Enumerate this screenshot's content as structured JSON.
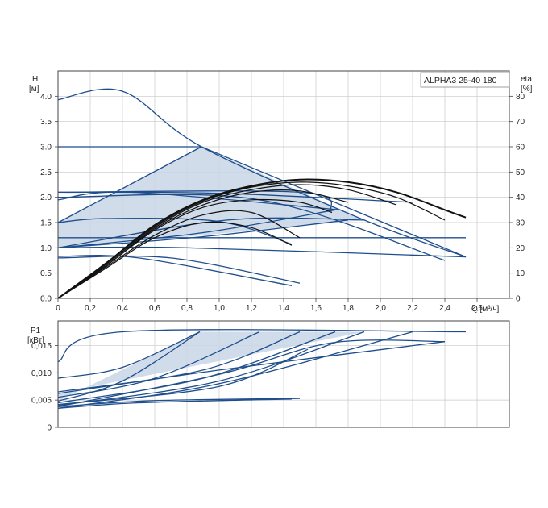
{
  "chart_data": [
    {
      "type": "line",
      "panel": "head-and-efficiency",
      "model_label": "ALPHA3 25-40 180",
      "y_label_name": "H",
      "y_label_unit": "[м]",
      "y2_label_name": "eta",
      "y2_label_unit": "[%]",
      "x_label": "Q [м³/ч]",
      "xlim": [
        0,
        2.8
      ],
      "ylim": [
        0,
        4.5
      ],
      "y2lim": [
        0,
        90
      ],
      "x_ticks": [
        "0",
        "0,2",
        "0,4",
        "0,6",
        "0,8",
        "1,0",
        "1,2",
        "1,4",
        "1,6",
        "1,8",
        "2,0",
        "2,2",
        "2,4",
        "2,6"
      ],
      "y_ticks": [
        "0.0",
        "0.5",
        "1.0",
        "1.5",
        "2.0",
        "2.5",
        "3.0",
        "3.5",
        "4.0"
      ],
      "y2_ticks": [
        "0",
        "10",
        "20",
        "30",
        "40",
        "50",
        "60",
        "70",
        "80"
      ],
      "grid": true,
      "colors": {
        "pump_curve": "#1f4e8c",
        "efficiency_curve": "#111111",
        "shade": "#c9d6e6",
        "grid": "#c8c8c8"
      },
      "shaded_region": [
        [
          0,
          1.0
        ],
        [
          0,
          1.5
        ],
        [
          0.89,
          3.0
        ],
        [
          1.9,
          1.55
        ],
        [
          0.8,
          1.22
        ]
      ],
      "pump_curves": [
        {
          "x": [
            0,
            0.4,
            0.89,
            1.9,
            2.53
          ],
          "y": [
            3.93,
            4.1,
            3.0,
            1.55,
            0.82
          ]
        },
        {
          "x": [
            0,
            0.89
          ],
          "y": [
            3.0,
            3.0
          ]
        },
        {
          "x": [
            0.89,
            2.53
          ],
          "y": [
            3.0,
            0.82
          ]
        },
        {
          "x": [
            0,
            0.89
          ],
          "y": [
            1.5,
            3.0
          ]
        },
        {
          "x": [
            0,
            1.5,
            1.7
          ],
          "y": [
            2.1,
            2.1,
            1.75
          ]
        },
        {
          "x": [
            0,
            1.0,
            2.2
          ],
          "y": [
            2.1,
            2.08,
            1.9
          ]
        },
        {
          "x": [
            0,
            0.45,
            1.75
          ],
          "y": [
            1.95,
            2.1,
            1.75
          ]
        },
        {
          "x": [
            0,
            1.25,
            2.4
          ],
          "y": [
            2.0,
            1.95,
            0.75
          ]
        },
        {
          "x": [
            0,
            1.05,
            1.9
          ],
          "y": [
            1.0,
            1.55,
            1.55
          ]
        },
        {
          "x": [
            0,
            0.9,
            1.72
          ],
          "y": [
            1.0,
            1.3,
            1.75
          ]
        },
        {
          "x": [
            0,
            0.3,
            1.0,
            1.45
          ],
          "y": [
            1.5,
            1.58,
            1.52,
            1.07
          ]
        },
        {
          "x": [
            0,
            1.0,
            2.53
          ],
          "y": [
            1.2,
            1.2,
            1.2
          ]
        },
        {
          "x": [
            0,
            0.8,
            2.53
          ],
          "y": [
            1.0,
            1.0,
            0.82
          ]
        },
        {
          "x": [
            0,
            0.9,
            1.8
          ],
          "y": [
            1.0,
            1.22,
            1.55
          ]
        },
        {
          "x": [
            0,
            0.7,
            1.5
          ],
          "y": [
            0.8,
            0.8,
            0.3
          ]
        },
        {
          "x": [
            0,
            0.5,
            1.45
          ],
          "y": [
            0.83,
            0.8,
            0.25
          ]
        }
      ],
      "efficiency_curves": [
        {
          "x": [
            0,
            0.3,
            0.6,
            0.9,
            1.2,
            1.5,
            1.8,
            2.1,
            2.4,
            2.53
          ],
          "y": [
            0,
            14,
            29,
            39,
            44.5,
            47,
            46,
            42,
            35,
            32
          ]
        },
        {
          "x": [
            0,
            0.3,
            0.6,
            0.9,
            1.2,
            1.5,
            1.8,
            2.1,
            2.4
          ],
          "y": [
            0,
            14,
            28.5,
            38.5,
            44,
            46,
            44.5,
            40,
            31
          ]
        },
        {
          "x": [
            0,
            0.3,
            0.6,
            0.9,
            1.2,
            1.5,
            1.8,
            2.1
          ],
          "y": [
            0,
            13.5,
            28,
            38,
            43,
            45,
            43,
            37
          ]
        },
        {
          "x": [
            0,
            0.3,
            0.6,
            0.9,
            1.2,
            1.5,
            1.8
          ],
          "y": [
            0,
            13,
            27.5,
            37,
            42,
            42.5,
            38
          ]
        },
        {
          "x": [
            0,
            0.3,
            0.6,
            0.9,
            1.2,
            1.5,
            1.7
          ],
          "y": [
            0,
            13,
            27,
            36,
            39,
            38,
            34
          ]
        },
        {
          "x": [
            0,
            0.3,
            0.6,
            0.9,
            1.2,
            1.5
          ],
          "y": [
            0,
            12.5,
            25,
            33,
            34,
            24
          ]
        },
        {
          "x": [
            0,
            0.3,
            0.6,
            0.9,
            1.2,
            1.45
          ],
          "y": [
            0,
            12,
            24,
            30,
            28,
            21
          ]
        }
      ]
    },
    {
      "type": "line",
      "panel": "power",
      "y_label_name": "P1",
      "y_label_unit": "[кВт]",
      "xlim": [
        0,
        2.8
      ],
      "ylim": [
        0,
        0.0195
      ],
      "y_ticks": [
        "0",
        "0,005",
        "0,010",
        "0,015"
      ],
      "grid": true,
      "shaded_region": [
        [
          0,
          0.0062
        ],
        [
          0,
          0.0048
        ],
        [
          0.88,
          0.0175
        ],
        [
          1.9,
          0.0175
        ]
      ],
      "power_curves": [
        {
          "x": [
            0,
            0.4,
            2.53
          ],
          "y": [
            0.012,
            0.0175,
            0.0175
          ]
        },
        {
          "x": [
            0,
            0.4,
            0.88
          ],
          "y": [
            0.009,
            0.011,
            0.0175
          ]
        },
        {
          "x": [
            0,
            0.4,
            0.88
          ],
          "y": [
            0.0048,
            0.0085,
            0.0175
          ]
        },
        {
          "x": [
            0,
            0.6,
            1.25
          ],
          "y": [
            0.0055,
            0.009,
            0.0175
          ]
        },
        {
          "x": [
            0,
            0.9,
            1.5
          ],
          "y": [
            0.0065,
            0.0105,
            0.0175
          ]
        },
        {
          "x": [
            0,
            0.9,
            1.72
          ],
          "y": [
            0.0045,
            0.009,
            0.0175
          ]
        },
        {
          "x": [
            0,
            1.0,
            1.9
          ],
          "y": [
            0.004,
            0.0085,
            0.0175
          ]
        },
        {
          "x": [
            0,
            1.0,
            2.2
          ],
          "y": [
            0.0035,
            0.008,
            0.0175
          ]
        },
        {
          "x": [
            0,
            1.0,
            1.7,
            2.4
          ],
          "y": [
            0.0038,
            0.0097,
            0.0155,
            0.0157
          ]
        },
        {
          "x": [
            0,
            1.0,
            1.55
          ],
          "y": [
            0.0042,
            0.0075,
            0.0143
          ]
        },
        {
          "x": [
            0,
            1.0,
            2.4
          ],
          "y": [
            0.0062,
            0.0105,
            0.0157
          ]
        },
        {
          "x": [
            0,
            0.5,
            1.45
          ],
          "y": [
            0.0035,
            0.0045,
            0.0052
          ]
        },
        {
          "x": [
            0,
            0.6,
            1.5
          ],
          "y": [
            0.0038,
            0.0049,
            0.0053
          ]
        }
      ]
    }
  ]
}
